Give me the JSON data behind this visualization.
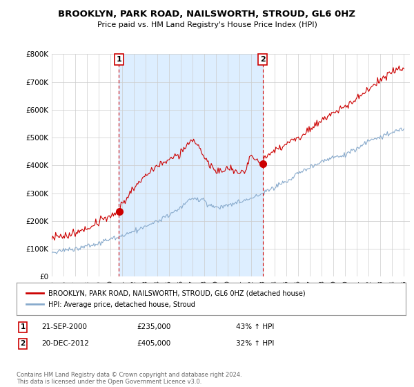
{
  "title": "BROOKLYN, PARK ROAD, NAILSWORTH, STROUD, GL6 0HZ",
  "subtitle": "Price paid vs. HM Land Registry's House Price Index (HPI)",
  "ylabel_ticks": [
    "£0",
    "£100K",
    "£200K",
    "£300K",
    "£400K",
    "£500K",
    "£600K",
    "£700K",
    "£800K"
  ],
  "ytick_vals": [
    0,
    100000,
    200000,
    300000,
    400000,
    500000,
    600000,
    700000,
    800000
  ],
  "ylim": [
    0,
    800000
  ],
  "xlim_start": 1995.0,
  "xlim_end": 2025.5,
  "red_line_color": "#cc0000",
  "blue_line_color": "#88aacc",
  "shade_color": "#ddeeff",
  "background_color": "#ffffff",
  "grid_color": "#cccccc",
  "legend1_label": "BROOKLYN, PARK ROAD, NAILSWORTH, STROUD, GL6 0HZ (detached house)",
  "legend2_label": "HPI: Average price, detached house, Stroud",
  "annotation1_num": "1",
  "annotation1_date": "21-SEP-2000",
  "annotation1_price": "£235,000",
  "annotation1_hpi": "43% ↑ HPI",
  "annotation1_year": 2000.72,
  "annotation1_val": 235000,
  "annotation2_num": "2",
  "annotation2_date": "20-DEC-2012",
  "annotation2_price": "£405,000",
  "annotation2_hpi": "32% ↑ HPI",
  "annotation2_year": 2012.97,
  "annotation2_val": 405000,
  "footer_line1": "Contains HM Land Registry data © Crown copyright and database right 2024.",
  "footer_line2": "This data is licensed under the Open Government Licence v3.0."
}
